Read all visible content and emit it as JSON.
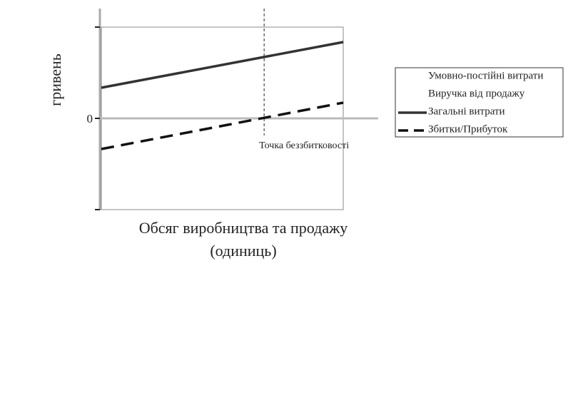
{
  "chart_data": {
    "type": "line",
    "ylabel": "гривень",
    "xlabel": [
      "Обсяг виробництва та продажу",
      "(одиниць)"
    ],
    "x": [
      0,
      1
    ],
    "xlim": [
      0,
      1
    ],
    "ylim": [
      -1,
      1
    ],
    "yticks": [
      0
    ],
    "series": [
      {
        "name": "Умовно-постійні витрати",
        "color": "#ffffff",
        "dash": "solid",
        "values": [
          null,
          null
        ]
      },
      {
        "name": "Виручка від продажу",
        "color": "#ffffff",
        "dash": "solid",
        "values": [
          null,
          null
        ]
      },
      {
        "name": "Загальні витрати",
        "color": "#333333",
        "dash": "solid",
        "values": [
          0.336,
          0.836
        ]
      },
      {
        "name": "Збитки/Прибуток",
        "color": "#111111",
        "dash": "dashed",
        "values": [
          -0.336,
          0.172
        ]
      }
    ],
    "annotation": {
      "text": "Точка беззбитковості",
      "x": 0.673
    },
    "legend": "right"
  }
}
